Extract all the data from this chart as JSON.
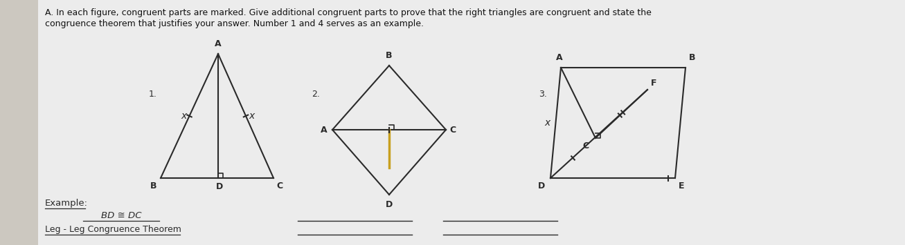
{
  "bg_color": "#e8e8e8",
  "fig_bg": "#d8d0c8",
  "header_text1": "A. In each figure, congruent parts are marked. Give additional congruent parts to prove that the right triangles are congruent and state the",
  "header_text2": "congruence theorem that justifies your answer. Number 1 and 4 serves as an example.",
  "example_label": "Example:",
  "example_line1": "BD ≅ DC",
  "example_line2": "Leg - Leg Congruence Theorem",
  "num1_label": "1.",
  "num2_label": "2.",
  "num3_label": "3.",
  "lc": "#2a2a2a",
  "main_bg": "#ececec",
  "side_bg": "#ccc8c0"
}
